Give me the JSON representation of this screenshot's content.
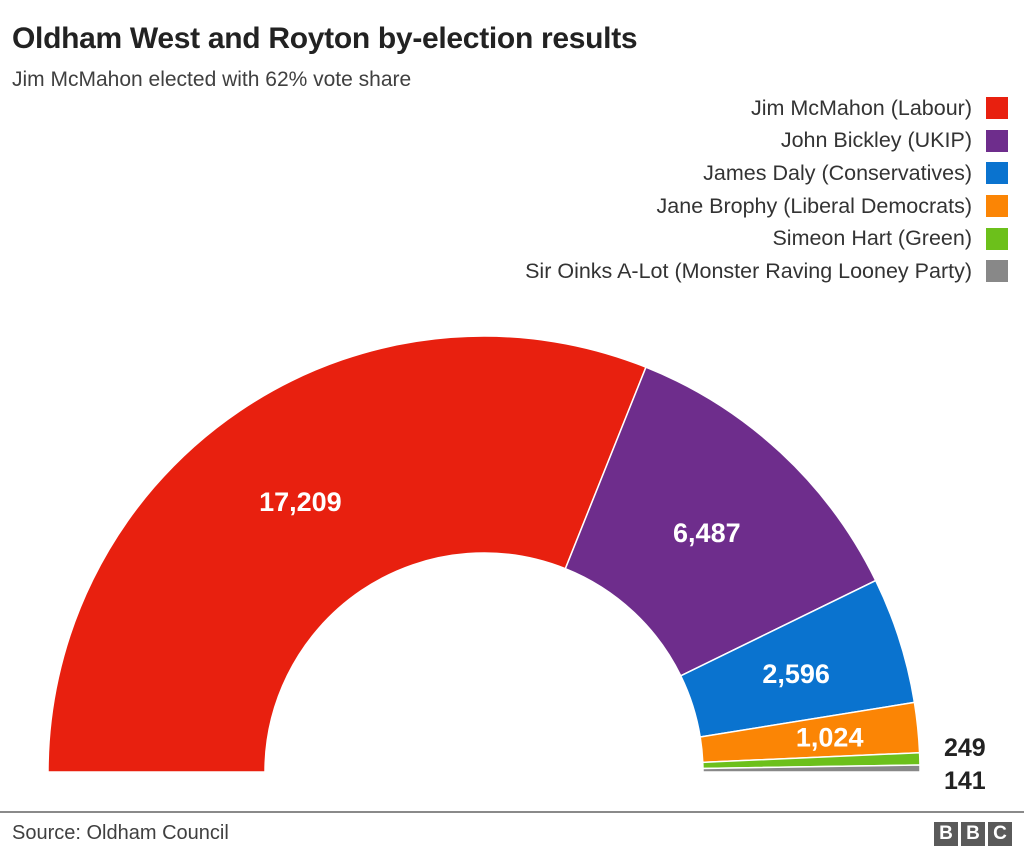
{
  "header": {
    "title": "Oldham West and Royton by-election results",
    "subtitle": "Jim McMahon elected with 62% vote share"
  },
  "legend": [
    {
      "label": "Jim McMahon (Labour)",
      "color": "#e8200f"
    },
    {
      "label": "John Bickley (UKIP)",
      "color": "#6e2d8c"
    },
    {
      "label": "James Daly (Conservatives)",
      "color": "#0a73cf"
    },
    {
      "label": "Jane Brophy (Liberal Democrats)",
      "color": "#fb8505"
    },
    {
      "label": "Simeon Hart (Green)",
      "color": "#6cc01b"
    },
    {
      "label": "Sir Oinks A-Lot (Monster Raving Looney Party)",
      "color": "#888888"
    }
  ],
  "chart_data": {
    "type": "pie",
    "variant": "semicircle-donut",
    "title": "Oldham West and Royton by-election results",
    "subtitle": "Jim McMahon elected with 62% vote share",
    "categories": [
      "Jim McMahon (Labour)",
      "John Bickley (UKIP)",
      "James Daly (Conservatives)",
      "Jane Brophy (Liberal Democrats)",
      "Simeon Hart (Green)",
      "Sir Oinks A-Lot (Monster Raving Looney Party)"
    ],
    "values": [
      17209,
      6487,
      2596,
      1024,
      249,
      141
    ],
    "labels": [
      "17,209",
      "6,487",
      "2,596",
      "1,024",
      "249",
      "141"
    ],
    "colors": [
      "#e8200f",
      "#6e2d8c",
      "#0a73cf",
      "#fb8505",
      "#6cc01b",
      "#888888"
    ],
    "legend_position": "top-right",
    "source": "Source: Oldham Council"
  },
  "footer": {
    "source": "Source: Oldham Council",
    "logo_letters": [
      "B",
      "B",
      "C"
    ]
  }
}
